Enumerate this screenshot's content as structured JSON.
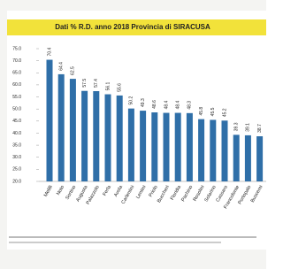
{
  "chart_data": {
    "type": "bar",
    "title": "Dati % R.D. anno 2018 Provincia di SIRACUSA",
    "categories": [
      "Melilli",
      "Noto",
      "Sortino",
      "Augusta",
      "Palazzolo",
      "Ferla",
      "Avola",
      "Carlentini",
      "Lentini",
      "Priolo",
      "Buccheri",
      "Floridia",
      "Pachino",
      "Rosolini",
      "Solarino",
      "Cassaro",
      "Francofonte",
      "Portopalo",
      "Buscemi"
    ],
    "values": [
      70.4,
      64.4,
      62.5,
      57.5,
      57.4,
      56.1,
      55.6,
      50.2,
      49.3,
      48.6,
      48.4,
      48.4,
      48.3,
      45.8,
      45.5,
      45.2,
      39.3,
      39.1,
      38.7
    ],
    "color": "#2f6fa8",
    "ylim": [
      20,
      75
    ],
    "yticks": [
      {
        "value": 20,
        "label": "20.0"
      },
      {
        "value": 25,
        "label": "25.0"
      },
      {
        "value": 30,
        "label": "30.0"
      },
      {
        "value": 35,
        "label": "35.0"
      },
      {
        "value": 40,
        "label": "40.0"
      },
      {
        "value": 45,
        "label": "45.0"
      },
      {
        "value": 50,
        "label": "50.0"
      },
      {
        "value": 55,
        "label": "55.0"
      },
      {
        "value": 60,
        "label": "60.0"
      },
      {
        "value": 65,
        "label": "65.0"
      },
      {
        "value": 70,
        "label": "70.0"
      },
      {
        "value": 75,
        "label": "75.0"
      }
    ],
    "grid": false
  }
}
